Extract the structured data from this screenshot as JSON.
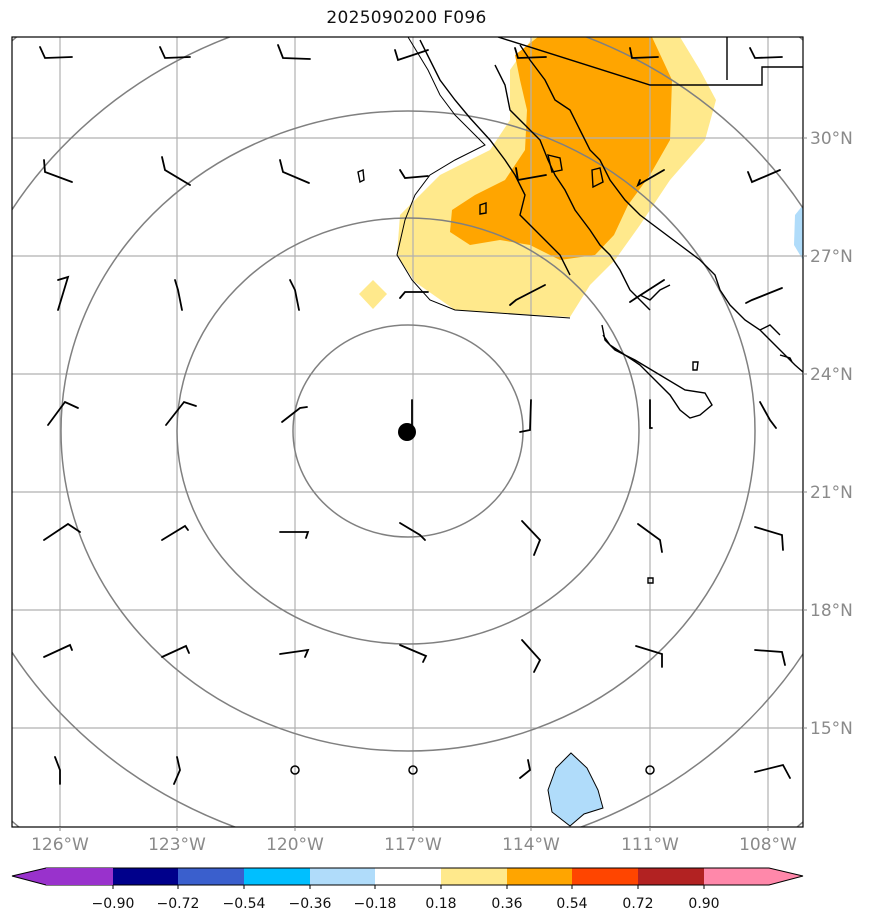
{
  "title": "2025090200 F096",
  "map": {
    "lon_range": [
      -127,
      -107.3
    ],
    "lat_range": [
      13.0,
      32.5
    ],
    "lat_ticks": [
      "30°N",
      "27°N",
      "24°N",
      "21°N",
      "18°N",
      "15°N"
    ],
    "lon_ticks": [
      "126°W",
      "123°W",
      "120°W",
      "117°W",
      "114°W",
      "111°W",
      "108°W"
    ],
    "center": {
      "lon": -117.0,
      "lat": 22.5
    },
    "range_rings": 5,
    "colors": {
      "ring": "#808080",
      "grid": "#b0b0b0",
      "coast": "#000000",
      "tick_label": "#8a8a8a",
      "positive_light": "#ffe98c",
      "positive_mid": "#ffa500",
      "negative_light": "#b0dcfa"
    },
    "wind_barbs": "black wind barbs at 3° grid points",
    "calm_marker": "circle"
  },
  "colorbar": {
    "labels": [
      "−0.90",
      "−0.72",
      "−0.54",
      "−0.36",
      "−0.18",
      "0.18",
      "0.36",
      "0.54",
      "0.72",
      "0.90"
    ],
    "colors": [
      "#9932cc",
      "#00008b",
      "#3a5fcd",
      "#00bfff",
      "#b0dcfa",
      "#ffffff",
      "#ffe98c",
      "#ffa500",
      "#ff4500",
      "#b22222",
      "#ff88aa"
    ]
  }
}
